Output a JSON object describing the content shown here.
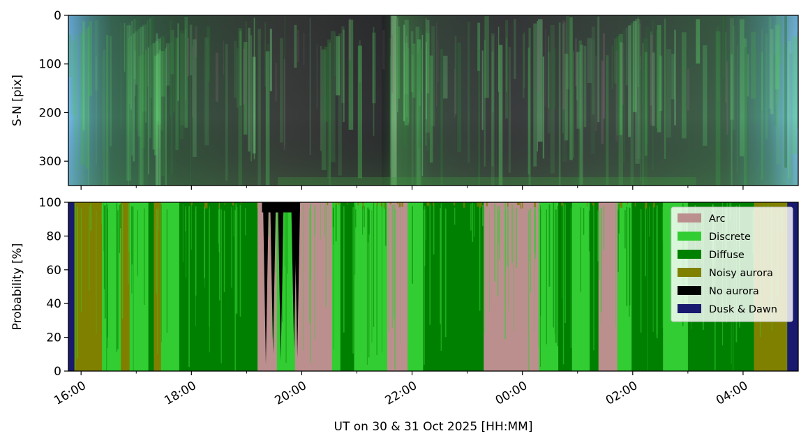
{
  "chart_data": [
    {
      "type": "heatmap",
      "panel": "keogram",
      "ylabel": "S-N [pix]",
      "ylim": [
        350,
        0
      ],
      "yticks": [
        0,
        100,
        200,
        300
      ],
      "description_colors": {
        "edge_sky": "#6fb8e8",
        "night_background": "#3a3c3e",
        "aurora_green": "#5fd06a",
        "aurora_pink": "#8a6a7a"
      }
    },
    {
      "type": "area",
      "panel": "classification",
      "stacked": true,
      "ylabel": "Probability [%]",
      "ylim": [
        0,
        100
      ],
      "yticks": [
        0,
        20,
        40,
        60,
        80,
        100
      ],
      "xlabel": "UT on 30 & 31 Oct 2025 [HH:MM]",
      "xticks": [
        "16:00",
        "18:00",
        "20:00",
        "22:00",
        "00:00",
        "02:00",
        "04:00"
      ],
      "x_start_hours": 15.77,
      "x_end_hours": 29.0,
      "legend": {
        "placement": "top-right"
      },
      "dominant_segments": [
        {
          "start": 15.77,
          "end": 15.88,
          "class": "Dusk & Dawn"
        },
        {
          "start": 15.88,
          "end": 16.38,
          "class": "Noisy aurora"
        },
        {
          "start": 16.38,
          "end": 16.72,
          "class": "Discrete"
        },
        {
          "start": 16.72,
          "end": 16.88,
          "class": "Noisy aurora"
        },
        {
          "start": 16.88,
          "end": 17.22,
          "class": "Discrete"
        },
        {
          "start": 17.22,
          "end": 17.32,
          "class": "Diffuse"
        },
        {
          "start": 17.32,
          "end": 17.45,
          "class": "Noisy aurora"
        },
        {
          "start": 17.45,
          "end": 17.78,
          "class": "Discrete"
        },
        {
          "start": 17.78,
          "end": 19.2,
          "class": "Diffuse"
        },
        {
          "start": 19.2,
          "end": 19.55,
          "class": "Arc"
        },
        {
          "start": 19.55,
          "end": 19.88,
          "class": "Discrete"
        },
        {
          "start": 19.88,
          "end": 20.55,
          "class": "Arc"
        },
        {
          "start": 20.55,
          "end": 20.7,
          "class": "Discrete"
        },
        {
          "start": 20.7,
          "end": 20.95,
          "class": "Diffuse"
        },
        {
          "start": 20.95,
          "end": 21.55,
          "class": "Discrete"
        },
        {
          "start": 21.55,
          "end": 21.92,
          "class": "Arc"
        },
        {
          "start": 21.92,
          "end": 22.2,
          "class": "Discrete"
        },
        {
          "start": 22.2,
          "end": 23.3,
          "class": "Diffuse"
        },
        {
          "start": 23.3,
          "end": 24.3,
          "class": "Arc"
        },
        {
          "start": 24.3,
          "end": 24.65,
          "class": "Discrete"
        },
        {
          "start": 24.65,
          "end": 24.9,
          "class": "Diffuse"
        },
        {
          "start": 24.9,
          "end": 25.22,
          "class": "Discrete"
        },
        {
          "start": 25.22,
          "end": 25.38,
          "class": "Diffuse"
        },
        {
          "start": 25.38,
          "end": 25.72,
          "class": "Arc"
        },
        {
          "start": 25.72,
          "end": 25.98,
          "class": "Discrete"
        },
        {
          "start": 25.98,
          "end": 26.55,
          "class": "Diffuse"
        },
        {
          "start": 26.55,
          "end": 27.0,
          "class": "Discrete"
        },
        {
          "start": 27.0,
          "end": 28.2,
          "class": "Diffuse"
        },
        {
          "start": 28.2,
          "end": 28.8,
          "class": "Noisy aurora"
        },
        {
          "start": 28.8,
          "end": 29.0,
          "class": "Dusk & Dawn"
        }
      ],
      "no_aurora_spikes": [
        {
          "x": 19.35,
          "height": 4
        },
        {
          "x": 19.48,
          "height": 10
        },
        {
          "x": 19.62,
          "height": 6
        },
        {
          "x": 19.86,
          "height": 13
        },
        {
          "x": 19.92,
          "height": 8
        }
      ],
      "series": [
        {
          "name": "Arc",
          "color": "#bc8f8f"
        },
        {
          "name": "Discrete",
          "color": "#32cd32"
        },
        {
          "name": "Diffuse",
          "color": "#008000"
        },
        {
          "name": "Noisy aurora",
          "color": "#808000"
        },
        {
          "name": "No aurora",
          "color": "#000000"
        },
        {
          "name": "Dusk & Dawn",
          "color": "#191970"
        }
      ]
    }
  ]
}
